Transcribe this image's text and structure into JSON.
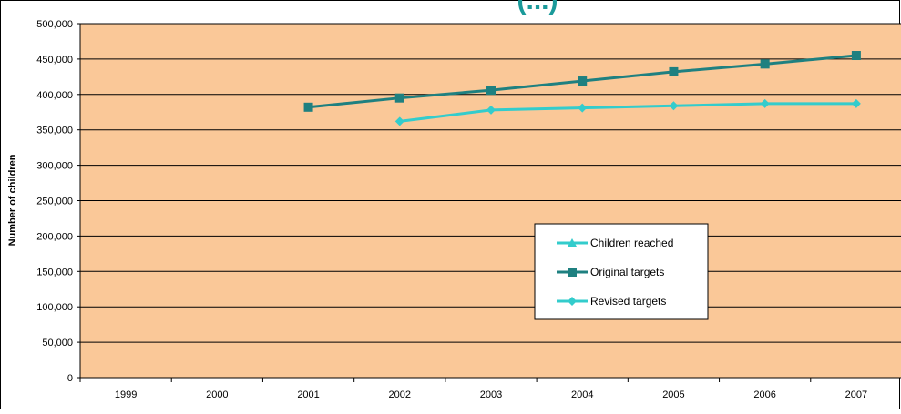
{
  "chart_data": {
    "type": "line",
    "title": "",
    "title_fragment": "(...)",
    "xlabel": "",
    "ylabel": "Number of children",
    "categories": [
      "1999",
      "2000",
      "2001",
      "2002",
      "2003",
      "2004",
      "2005",
      "2006",
      "2007"
    ],
    "ylim": [
      0,
      500000
    ],
    "yticks": [
      "0",
      "50,000",
      "100,000",
      "150,000",
      "200,000",
      "250,000",
      "300,000",
      "350,000",
      "400,000",
      "450,000",
      "500,000"
    ],
    "grid": true,
    "legend_position": "lower-right inside plot",
    "plot_background": "#FAC898",
    "series": [
      {
        "name": "Children reached",
        "color": "#33CCCC",
        "marker": "triangle",
        "values": [
          null,
          null,
          null,
          null,
          null,
          null,
          null,
          null,
          null
        ]
      },
      {
        "name": "Original targets",
        "color": "#1E8080",
        "marker": "square",
        "values": [
          null,
          null,
          382000,
          395000,
          406000,
          419000,
          432000,
          443000,
          455000
        ]
      },
      {
        "name": "Revised targets",
        "color": "#33CCCC",
        "marker": "diamond",
        "values": [
          null,
          null,
          null,
          362000,
          378000,
          381000,
          384000,
          387000,
          387000
        ]
      }
    ]
  }
}
